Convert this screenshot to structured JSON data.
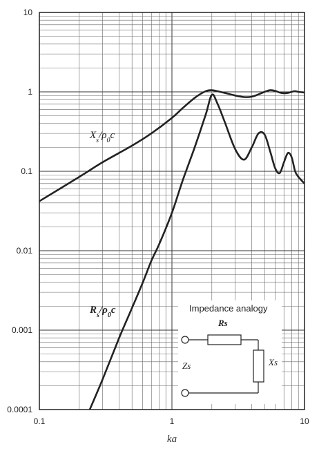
{
  "chart_data": {
    "type": "line",
    "xscale": "log",
    "yscale": "log",
    "xlim": [
      0.1,
      10
    ],
    "ylim": [
      0.0001,
      10
    ],
    "xlabel": "ka",
    "ylabel": "",
    "grid": true,
    "x_ticks": [
      "0.1",
      "1",
      "10"
    ],
    "y_ticks": [
      "0.0001",
      "0.001",
      "0.01",
      "0.1",
      "1",
      "10"
    ],
    "series": [
      {
        "name": "Xs/ρ0c",
        "x": [
          0.1,
          0.2,
          0.3,
          0.5,
          0.7,
          1.0,
          1.2,
          1.5,
          1.8,
          2.0,
          2.2,
          2.5,
          3.0,
          3.5,
          4.0,
          4.5,
          5.0,
          5.5,
          6.0,
          6.5,
          7.0,
          7.5,
          8.0,
          8.5,
          9.0,
          10.0
        ],
        "values": [
          0.042,
          0.085,
          0.13,
          0.21,
          0.3,
          0.47,
          0.62,
          0.85,
          1.02,
          1.05,
          1.02,
          0.97,
          0.9,
          0.86,
          0.87,
          0.93,
          1.0,
          1.05,
          1.03,
          0.98,
          0.96,
          0.97,
          1.0,
          1.02,
          1.0,
          0.98
        ]
      },
      {
        "name": "Rs/ρ0c",
        "x": [
          0.24,
          0.3,
          0.4,
          0.5,
          0.6,
          0.7,
          0.8,
          1.0,
          1.2,
          1.5,
          1.8,
          2.0,
          2.2,
          2.5,
          3.0,
          3.5,
          4.0,
          4.5,
          5.0,
          5.5,
          6.0,
          6.5,
          7.0,
          7.5,
          8.0,
          8.5,
          9.0,
          10.0
        ],
        "values": [
          0.0001,
          0.00024,
          0.0008,
          0.0019,
          0.0039,
          0.0075,
          0.012,
          0.03,
          0.075,
          0.21,
          0.52,
          0.92,
          0.72,
          0.42,
          0.19,
          0.14,
          0.2,
          0.3,
          0.29,
          0.18,
          0.11,
          0.095,
          0.13,
          0.17,
          0.15,
          0.1,
          0.085,
          0.07
        ]
      }
    ],
    "curve_labels": {
      "xs": "Xs/ρ0c",
      "rs": "Rs/ρ0c"
    },
    "inset": {
      "title": "Impedance analogy",
      "rs_label": "Rs",
      "zs_label": "Zs",
      "xs_label": "Xs"
    }
  }
}
